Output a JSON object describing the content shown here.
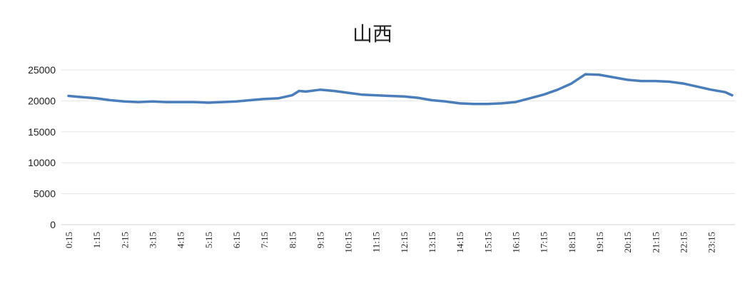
{
  "chart_data": {
    "type": "line",
    "title": "山西",
    "xlabel": "",
    "ylabel": "",
    "ylim": [
      0,
      25000
    ],
    "yticks": [
      0,
      5000,
      10000,
      15000,
      20000,
      25000
    ],
    "x_tick_labels": [
      "0:15",
      "1:15",
      "2:15",
      "3:15",
      "4:15",
      "5:15",
      "6:15",
      "7:15",
      "8:15",
      "9:15",
      "10:15",
      "11:15",
      "12:15",
      "13:15",
      "14:15",
      "15:15",
      "16:15",
      "17:15",
      "18:15",
      "19:15",
      "20:15",
      "21:15",
      "22:15",
      "23:15"
    ],
    "grid": true,
    "legend": "none",
    "series": [
      {
        "color": "#4a7ebb",
        "x": [
          "0:15",
          "0:45",
          "1:15",
          "1:45",
          "2:15",
          "2:45",
          "3:15",
          "3:45",
          "4:15",
          "4:45",
          "5:15",
          "5:45",
          "6:15",
          "6:45",
          "7:15",
          "7:45",
          "8:15",
          "8:30",
          "8:45",
          "9:15",
          "9:45",
          "10:15",
          "10:45",
          "11:15",
          "11:45",
          "12:15",
          "12:45",
          "13:15",
          "13:45",
          "14:15",
          "14:45",
          "15:15",
          "15:45",
          "16:15",
          "16:45",
          "17:15",
          "17:45",
          "18:15",
          "18:45",
          "19:15",
          "19:45",
          "20:15",
          "20:45",
          "21:15",
          "21:45",
          "22:15",
          "22:45",
          "23:15",
          "23:45",
          "24:00"
        ],
        "values": [
          20800,
          20600,
          20400,
          20100,
          19900,
          19800,
          19900,
          19800,
          19800,
          19800,
          19700,
          19800,
          19900,
          20100,
          20300,
          20400,
          20900,
          21600,
          21500,
          21800,
          21600,
          21300,
          21000,
          20900,
          20800,
          20700,
          20500,
          20100,
          19900,
          19600,
          19500,
          19500,
          19600,
          19800,
          20400,
          21000,
          21800,
          22800,
          24300,
          24200,
          23800,
          23400,
          23200,
          23200,
          23100,
          22800,
          22300,
          21800,
          21400,
          20900
        ]
      }
    ]
  }
}
